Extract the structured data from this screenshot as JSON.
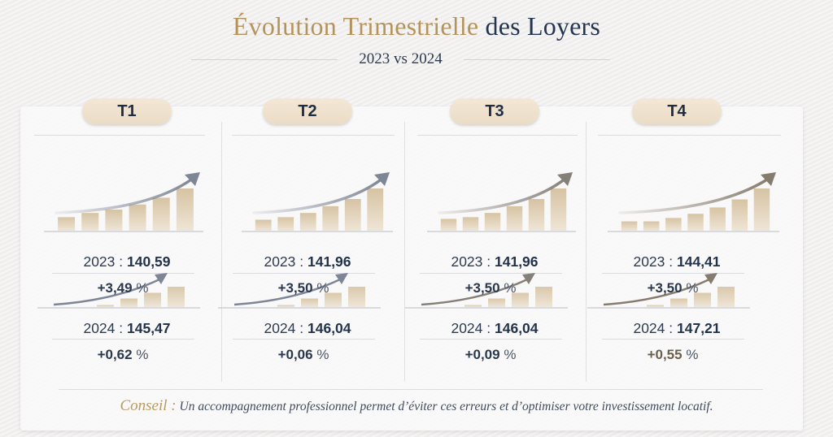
{
  "header": {
    "title_part1": "Évolution Trimestrielle",
    "title_part2": "des Loyers",
    "subtitle": "2023 vs 2024"
  },
  "colors": {
    "gold": "#b5945c",
    "navy": "#24364f",
    "pill_bg": "#efe1cc",
    "bar_fill": "#dccbb0",
    "arrow_blue_grey": "#7d8596",
    "arrow_taupe": "#857c6e"
  },
  "quarters": [
    {
      "label": "T1",
      "y2023_label": "2023 :",
      "y2023_value": "140,59",
      "change_2023": "+3,49",
      "y2024_label": "2024 :",
      "y2024_value": "145,47",
      "change_2024": "+0,62",
      "pct_symbol": "%"
    },
    {
      "label": "T2",
      "y2023_label": "2023 :",
      "y2023_value": "141,96",
      "change_2023": "+3,50",
      "y2024_label": "2024 :",
      "y2024_value": "146,04",
      "change_2024": "+0,06",
      "pct_symbol": "%"
    },
    {
      "label": "T3",
      "y2023_label": "2023 :",
      "y2023_value": "141,96",
      "change_2023": "+3,50",
      "y2024_label": "2024 :",
      "y2024_value": "146,04",
      "change_2024": "+0,09",
      "pct_symbol": "%"
    },
    {
      "label": "T4",
      "y2023_label": "2023 :",
      "y2023_value": "144,41",
      "change_2023": "+3,50",
      "y2024_label": "2024 :",
      "y2024_value": "147,21",
      "change_2024": "+0,55",
      "pct_symbol": "%"
    }
  ],
  "chart_data": {
    "type": "table",
    "title": "Évolution Trimestrielle des Loyers",
    "subtitle": "2023 vs 2024",
    "categories": [
      "T1",
      "T2",
      "T3",
      "T4"
    ],
    "series": [
      {
        "name": "2023",
        "values": [
          140.59,
          141.96,
          141.96,
          144.41
        ],
        "change_pct": [
          3.49,
          3.5,
          3.5,
          3.5
        ]
      },
      {
        "name": "2024",
        "values": [
          145.47,
          146.04,
          146.04,
          147.21
        ],
        "change_pct": [
          0.62,
          0.06,
          0.09,
          0.55
        ]
      }
    ],
    "decorative_icons": {
      "top_bar_counts": [
        6,
        6,
        6,
        7
      ],
      "top_relative_heights": {
        "T1": [
          0.32,
          0.42,
          0.5,
          0.62,
          0.78,
          1.0
        ],
        "T2": [
          0.26,
          0.32,
          0.42,
          0.58,
          0.75,
          1.0
        ],
        "T3": [
          0.28,
          0.32,
          0.42,
          0.58,
          0.75,
          1.0
        ],
        "T4": [
          0.22,
          0.22,
          0.3,
          0.4,
          0.55,
          0.74,
          1.0
        ]
      },
      "mini_relative_heights": [
        0.1,
        0.42,
        0.7,
        1.0
      ]
    }
  },
  "footer": {
    "label": "Conseil :",
    "text": "Un accompagnement professionnel permet d’éviter ces erreurs et d’optimiser votre investissement locatif."
  }
}
